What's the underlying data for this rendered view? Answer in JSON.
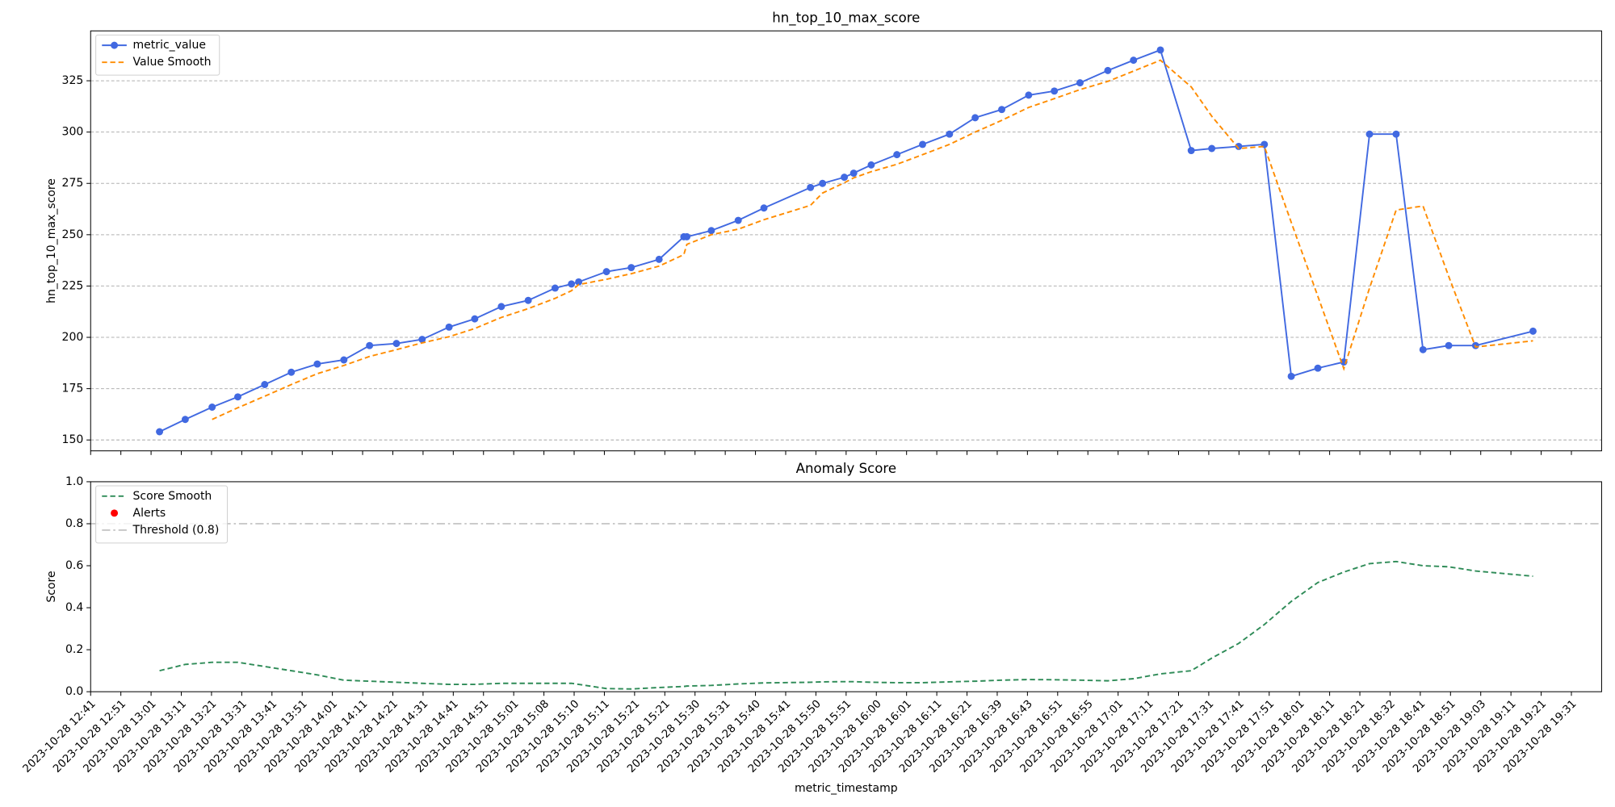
{
  "chart_data": [
    {
      "type": "line",
      "title": "hn_top_10_max_score",
      "ylabel": "hn_top_10_max_score",
      "x": [
        2.28,
        3.13,
        4.02,
        4.87,
        5.76,
        6.64,
        7.5,
        8.38,
        9.23,
        10.12,
        10.97,
        11.86,
        12.71,
        13.59,
        14.48,
        15.37,
        15.91,
        16.15,
        17.07,
        17.89,
        18.81,
        19.63,
        19.73,
        20.54,
        21.43,
        22.28,
        23.82,
        24.22,
        24.94,
        25.25,
        25.83,
        26.68,
        27.53,
        28.42,
        29.27,
        30.15,
        31.04,
        31.89,
        32.74,
        33.66,
        34.51,
        35.4,
        36.42,
        37.1,
        37.99,
        38.84,
        39.73,
        40.61,
        41.47,
        42.32,
        43.2,
        44.09,
        44.94,
        45.83,
        47.73
      ],
      "series": [
        {
          "name": "metric_value",
          "color": "#4169e1",
          "marker": true,
          "dash": "solid",
          "values": [
            154,
            160,
            166,
            171,
            177,
            183,
            187,
            189,
            196,
            197,
            199,
            205,
            209,
            215,
            218,
            224,
            226,
            227,
            232,
            234,
            238,
            249,
            249,
            252,
            257,
            263,
            273,
            275,
            278,
            280,
            284,
            289,
            294,
            299,
            307,
            311,
            318,
            320,
            324,
            330,
            335,
            340,
            291,
            292,
            293,
            294,
            181,
            185,
            188,
            299,
            299,
            194,
            196,
            196,
            203
          ]
        },
        {
          "name": "Value Smooth",
          "color": "#ff8c00",
          "marker": false,
          "dash": "dashed",
          "values": [
            null,
            null,
            160,
            165.7,
            171.3,
            177,
            182.3,
            186.3,
            190.7,
            194,
            197.3,
            200.3,
            204.3,
            209.7,
            214,
            219,
            222.7,
            225.7,
            228.3,
            231,
            234.7,
            240.3,
            245.3,
            250,
            252.7,
            257.3,
            264.3,
            270.3,
            275.3,
            277.7,
            280.7,
            284.3,
            289,
            294,
            300,
            305.7,
            312,
            316.3,
            320.7,
            324.7,
            329.7,
            335,
            322,
            307.7,
            292,
            293,
            256,
            220,
            184.7,
            224,
            262,
            264,
            229.7,
            195.3,
            198.3
          ]
        }
      ],
      "xlim": [
        0,
        50
      ],
      "ylim": [
        144.7,
        349.3
      ],
      "yticks": [
        150,
        175,
        200,
        225,
        250,
        275,
        300,
        325
      ],
      "grid": true,
      "legend": "upper left"
    },
    {
      "type": "line",
      "title": "Anomaly Score",
      "ylabel": "Score",
      "xlabel": "metric_timestamp",
      "x": [
        2.28,
        3.13,
        4.02,
        4.87,
        5.76,
        6.64,
        7.5,
        8.38,
        9.23,
        10.12,
        10.97,
        11.86,
        12.71,
        13.59,
        14.48,
        15.37,
        15.91,
        16.15,
        17.07,
        17.89,
        18.81,
        19.63,
        19.73,
        20.54,
        21.43,
        22.28,
        23.82,
        24.22,
        24.94,
        25.25,
        25.83,
        26.68,
        27.53,
        28.42,
        29.27,
        30.15,
        31.04,
        31.89,
        32.74,
        33.66,
        34.51,
        35.4,
        36.42,
        37.1,
        37.99,
        38.84,
        39.73,
        40.61,
        41.47,
        42.32,
        43.2,
        44.09,
        44.94,
        45.83,
        47.73
      ],
      "series": [
        {
          "name": "Score Smooth",
          "color": "#2e8b57",
          "marker": false,
          "dash": "dashed",
          "values": [
            0.1,
            0.13,
            0.14,
            0.14,
            0.12,
            0.1,
            0.08,
            0.055,
            0.05,
            0.045,
            0.04,
            0.035,
            0.035,
            0.04,
            0.04,
            0.04,
            0.04,
            0.035,
            0.015,
            0.013,
            0.02,
            0.025,
            0.027,
            0.03,
            0.037,
            0.042,
            0.045,
            0.047,
            0.048,
            0.048,
            0.045,
            0.043,
            0.043,
            0.047,
            0.05,
            0.055,
            0.058,
            0.057,
            0.055,
            0.052,
            0.062,
            0.085,
            0.1,
            0.16,
            0.23,
            0.32,
            0.43,
            0.52,
            0.57,
            0.61,
            0.62,
            0.6,
            0.595,
            0.575,
            0.55
          ]
        },
        {
          "name": "Alerts",
          "color": "#ff0000",
          "marker": true,
          "dash": "none",
          "x": [],
          "values": []
        }
      ],
      "hlines": [
        {
          "name": "Threshold (0.8)",
          "value": 0.8,
          "color": "#c8c8c8"
        }
      ],
      "xlim": [
        0,
        50
      ],
      "ylim": [
        0,
        1
      ],
      "yticks": [
        {
          "value": 0,
          "label": "0.0"
        },
        0.2,
        0.4,
        0.6,
        0.8,
        {
          "value": 1,
          "label": "1.0"
        }
      ],
      "xticks": [
        {
          "value": 0,
          "label": "2023-10-28 12:41"
        },
        {
          "value": 1,
          "label": "2023-10-28 12:51"
        },
        {
          "value": 2,
          "label": "2023-10-28 13:01"
        },
        {
          "value": 3,
          "label": "2023-10-28 13:11"
        },
        {
          "value": 4,
          "label": "2023-10-28 13:21"
        },
        {
          "value": 5,
          "label": "2023-10-28 13:31"
        },
        {
          "value": 6,
          "label": "2023-10-28 13:41"
        },
        {
          "value": 7,
          "label": "2023-10-28 13:51"
        },
        {
          "value": 8,
          "label": "2023-10-28 14:01"
        },
        {
          "value": 9,
          "label": "2023-10-28 14:11"
        },
        {
          "value": 10,
          "label": "2023-10-28 14:21"
        },
        {
          "value": 11,
          "label": "2023-10-28 14:31"
        },
        {
          "value": 12,
          "label": "2023-10-28 14:41"
        },
        {
          "value": 13,
          "label": "2023-10-28 14:51"
        },
        {
          "value": 14,
          "label": "2023-10-28 15:01"
        },
        {
          "value": 15,
          "label": "2023-10-28 15:08"
        },
        {
          "value": 16,
          "label": "2023-10-28 15:10"
        },
        {
          "value": 17,
          "label": "2023-10-28 15:11"
        },
        {
          "value": 18,
          "label": "2023-10-28 15:21"
        },
        {
          "value": 19,
          "label": "2023-10-28 15:21"
        },
        {
          "value": 20,
          "label": "2023-10-28 15:30"
        },
        {
          "value": 21,
          "label": "2023-10-28 15:31"
        },
        {
          "value": 22,
          "label": "2023-10-28 15:40"
        },
        {
          "value": 23,
          "label": "2023-10-28 15:41"
        },
        {
          "value": 24,
          "label": "2023-10-28 15:50"
        },
        {
          "value": 25,
          "label": "2023-10-28 15:51"
        },
        {
          "value": 26,
          "label": "2023-10-28 16:00"
        },
        {
          "value": 27,
          "label": "2023-10-28 16:01"
        },
        {
          "value": 28,
          "label": "2023-10-28 16:11"
        },
        {
          "value": 29,
          "label": "2023-10-28 16:21"
        },
        {
          "value": 30,
          "label": "2023-10-28 16:39"
        },
        {
          "value": 31,
          "label": "2023-10-28 16:43"
        },
        {
          "value": 32,
          "label": "2023-10-28 16:51"
        },
        {
          "value": 33,
          "label": "2023-10-28 16:55"
        },
        {
          "value": 34,
          "label": "2023-10-28 17:01"
        },
        {
          "value": 35,
          "label": "2023-10-28 17:11"
        },
        {
          "value": 36,
          "label": "2023-10-28 17:21"
        },
        {
          "value": 37,
          "label": "2023-10-28 17:31"
        },
        {
          "value": 38,
          "label": "2023-10-28 17:41"
        },
        {
          "value": 39,
          "label": "2023-10-28 17:51"
        },
        {
          "value": 40,
          "label": "2023-10-28 18:01"
        },
        {
          "value": 41,
          "label": "2023-10-28 18:11"
        },
        {
          "value": 42,
          "label": "2023-10-28 18:21"
        },
        {
          "value": 43,
          "label": "2023-10-28 18:32"
        },
        {
          "value": 44,
          "label": "2023-10-28 18:41"
        },
        {
          "value": 45,
          "label": "2023-10-28 18:51"
        },
        {
          "value": 46,
          "label": "2023-10-28 19:03"
        },
        {
          "value": 47,
          "label": "2023-10-28 19:11"
        },
        {
          "value": 48,
          "label": "2023-10-28 19:21"
        },
        {
          "value": 49,
          "label": "2023-10-28 19:31"
        }
      ],
      "grid": false,
      "legend": "upper left"
    }
  ]
}
